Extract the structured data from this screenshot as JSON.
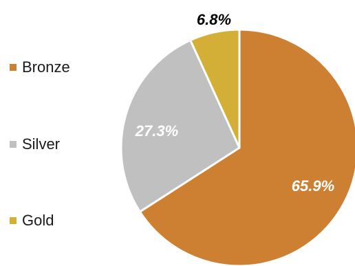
{
  "chart_data": {
    "type": "pie",
    "title": "",
    "categories": [
      "Bronze",
      "Silver",
      "Gold"
    ],
    "values": [
      65.9,
      27.3,
      6.8
    ],
    "value_labels": [
      "65.9%",
      "27.3%",
      "6.8%"
    ],
    "colors": [
      "#cd7f32",
      "#c0c0c0",
      "#d4af37"
    ],
    "label_colors": [
      "#ffffff",
      "#ffffff",
      "#000000"
    ],
    "start_angle": "12 o'clock, clockwise",
    "legend": {
      "placement": "left",
      "entries": [
        "Bronze",
        "Silver",
        "Gold"
      ]
    }
  }
}
